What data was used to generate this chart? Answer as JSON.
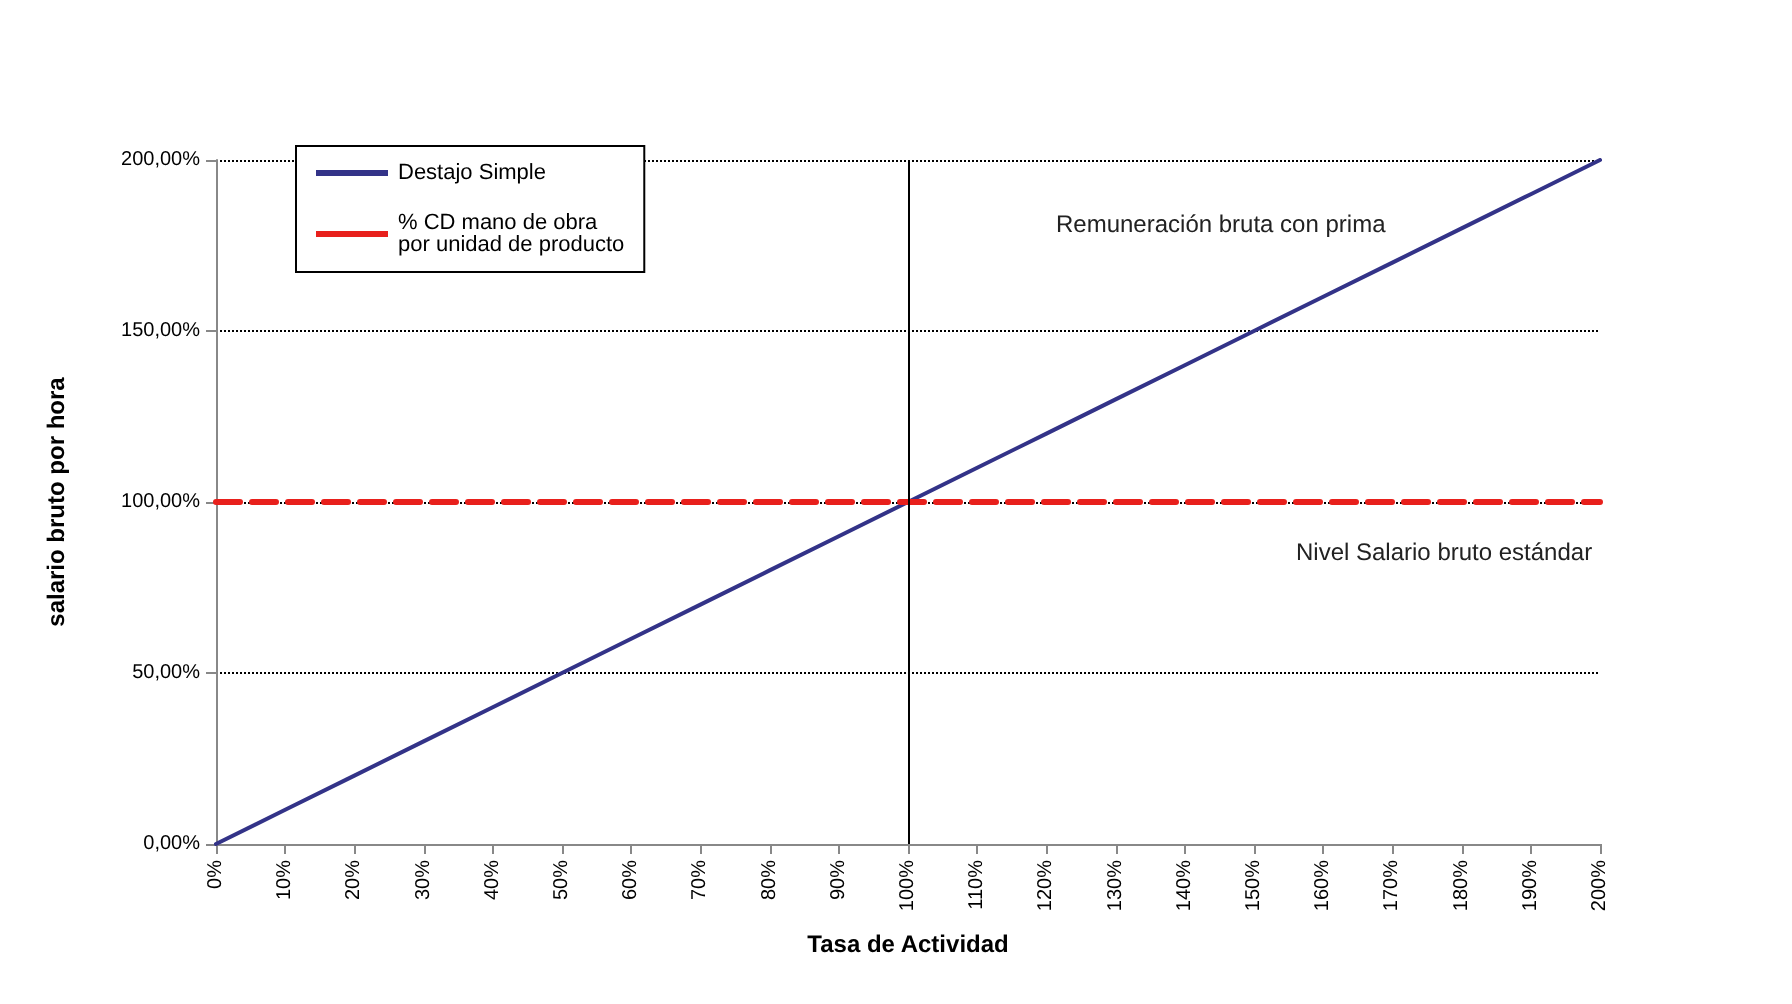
{
  "chart_data": {
    "type": "line",
    "xlabel": "Tasa de Actividad",
    "ylabel": "salario bruto por hora",
    "categories": [
      "0%",
      "10%",
      "20%",
      "30%",
      "40%",
      "50%",
      "60%",
      "70%",
      "80%",
      "90%",
      "100%",
      "110%",
      "120%",
      "130%",
      "140%",
      "150%",
      "160%",
      "170%",
      "180%",
      "190%",
      "200%"
    ],
    "series": [
      {
        "name": "Destajo Simple",
        "color": "#333388",
        "line_style": "solid",
        "values": [
          0,
          10,
          20,
          30,
          40,
          50,
          60,
          70,
          80,
          90,
          100,
          110,
          120,
          130,
          140,
          150,
          160,
          170,
          180,
          190,
          200
        ]
      },
      {
        "name": "% CD mano de obra\npor unidad de producto",
        "color": "#e8201c",
        "line_style": "dashed",
        "values": [
          100,
          100,
          100,
          100,
          100,
          100,
          100,
          100,
          100,
          100,
          100,
          100,
          100,
          100,
          100,
          100,
          100,
          100,
          100,
          100,
          100
        ]
      }
    ],
    "ylim": [
      0,
      200
    ],
    "yticks": [
      {
        "value": 0,
        "label": "0,00%"
      },
      {
        "value": 50,
        "label": "50,00%"
      },
      {
        "value": 100,
        "label": "100,00%"
      },
      {
        "value": 150,
        "label": "150,00%"
      },
      {
        "value": 200,
        "label": "200,00%"
      }
    ],
    "ref_lines": [
      {
        "axis": "x",
        "value": "100%",
        "color": "#000000"
      }
    ],
    "annotations": [
      "Remuneración bruta con prima",
      "Nivel Salario bruto estándar"
    ],
    "grid": "y",
    "legend": "top left",
    "marker": "none"
  }
}
